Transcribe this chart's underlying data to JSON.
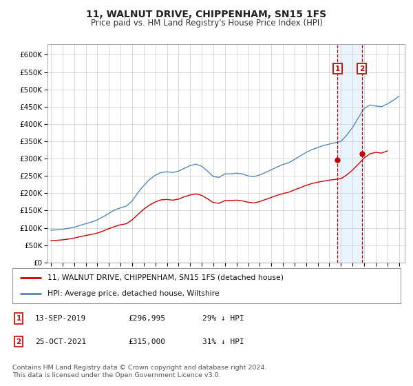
{
  "title": "11, WALNUT DRIVE, CHIPPENHAM, SN15 1FS",
  "subtitle": "Price paid vs. HM Land Registry's House Price Index (HPI)",
  "ylabel_ticks": [
    "£0",
    "£50K",
    "£100K",
    "£150K",
    "£200K",
    "£250K",
    "£300K",
    "£350K",
    "£400K",
    "£450K",
    "£500K",
    "£550K",
    "£600K"
  ],
  "ytick_vals": [
    0,
    50000,
    100000,
    150000,
    200000,
    250000,
    300000,
    350000,
    400000,
    450000,
    500000,
    550000,
    600000
  ],
  "ylim": [
    0,
    630000
  ],
  "xlim_start": 1994.7,
  "xlim_end": 2025.5,
  "hpi_color": "#5588bb",
  "price_color": "#cc0000",
  "marker1_date": 2019.7,
  "marker2_date": 2021.8,
  "marker1_price": 296995,
  "marker2_price": 315000,
  "marker1_label": "1",
  "marker2_label": "2",
  "legend_line1": "11, WALNUT DRIVE, CHIPPENHAM, SN15 1FS (detached house)",
  "legend_line2": "HPI: Average price, detached house, Wiltshire",
  "table_row1": [
    "1",
    "13-SEP-2019",
    "£296,995",
    "29% ↓ HPI"
  ],
  "table_row2": [
    "2",
    "25-OCT-2021",
    "£315,000",
    "31% ↓ HPI"
  ],
  "footnote": "Contains HM Land Registry data © Crown copyright and database right 2024.\nThis data is licensed under the Open Government Licence v3.0.",
  "background_color": "#ffffff",
  "grid_color": "#cccccc",
  "shade_color": "#ddeeff",
  "hpi_years": [
    1995.0,
    1995.5,
    1996.0,
    1996.5,
    1997.0,
    1997.5,
    1998.0,
    1998.5,
    1999.0,
    1999.5,
    2000.0,
    2000.5,
    2001.0,
    2001.5,
    2002.0,
    2002.5,
    2003.0,
    2003.5,
    2004.0,
    2004.5,
    2005.0,
    2005.5,
    2006.0,
    2006.5,
    2007.0,
    2007.5,
    2008.0,
    2008.5,
    2009.0,
    2009.5,
    2010.0,
    2010.5,
    2011.0,
    2011.5,
    2012.0,
    2012.5,
    2013.0,
    2013.5,
    2014.0,
    2014.5,
    2015.0,
    2015.5,
    2016.0,
    2016.5,
    2017.0,
    2017.5,
    2018.0,
    2018.5,
    2019.0,
    2019.5,
    2020.0,
    2020.5,
    2021.0,
    2021.5,
    2022.0,
    2022.5,
    2023.0,
    2023.5,
    2024.0,
    2024.5,
    2025.0
  ],
  "hpi_values": [
    93000,
    94500,
    96000,
    98500,
    102000,
    107000,
    112000,
    117000,
    123000,
    132000,
    142000,
    152000,
    158000,
    163000,
    178000,
    202000,
    222000,
    240000,
    252000,
    260000,
    262000,
    260000,
    264000,
    272000,
    280000,
    284000,
    278000,
    264000,
    248000,
    246000,
    256000,
    256000,
    258000,
    256000,
    250000,
    248000,
    253000,
    260000,
    268000,
    276000,
    283000,
    288000,
    298000,
    308000,
    318000,
    326000,
    332000,
    338000,
    342000,
    346000,
    350000,
    368000,
    390000,
    418000,
    445000,
    455000,
    452000,
    450000,
    458000,
    468000,
    480000
  ],
  "price_years": [
    1995.0,
    1995.5,
    1996.0,
    1996.5,
    1997.0,
    1997.5,
    1998.0,
    1998.5,
    1999.0,
    1999.5,
    2000.0,
    2000.5,
    2001.0,
    2001.5,
    2002.0,
    2002.5,
    2003.0,
    2003.5,
    2004.0,
    2004.5,
    2005.0,
    2005.5,
    2006.0,
    2006.5,
    2007.0,
    2007.5,
    2008.0,
    2008.5,
    2009.0,
    2009.5,
    2010.0,
    2010.5,
    2011.0,
    2011.5,
    2012.0,
    2012.5,
    2013.0,
    2013.5,
    2014.0,
    2014.5,
    2015.0,
    2015.5,
    2016.0,
    2016.5,
    2017.0,
    2017.5,
    2018.0,
    2018.5,
    2019.0,
    2019.5,
    2020.0,
    2020.5,
    2021.0,
    2021.5,
    2022.0,
    2022.5,
    2023.0,
    2023.5,
    2024.0
  ],
  "price_values": [
    63000,
    64000,
    65500,
    67500,
    70500,
    74500,
    78000,
    81000,
    85000,
    91000,
    98000,
    104000,
    109000,
    112000,
    123000,
    139000,
    154000,
    166000,
    175000,
    181000,
    182000,
    180000,
    183000,
    190000,
    195000,
    198000,
    194000,
    184000,
    173000,
    171000,
    179000,
    179000,
    180000,
    178000,
    174000,
    172000,
    176000,
    182000,
    188000,
    194000,
    199000,
    203000,
    210000,
    216000,
    223000,
    228000,
    232000,
    235000,
    238000,
    240000,
    242000,
    253000,
    267000,
    284000,
    302000,
    314000,
    318000,
    316000,
    322000
  ]
}
